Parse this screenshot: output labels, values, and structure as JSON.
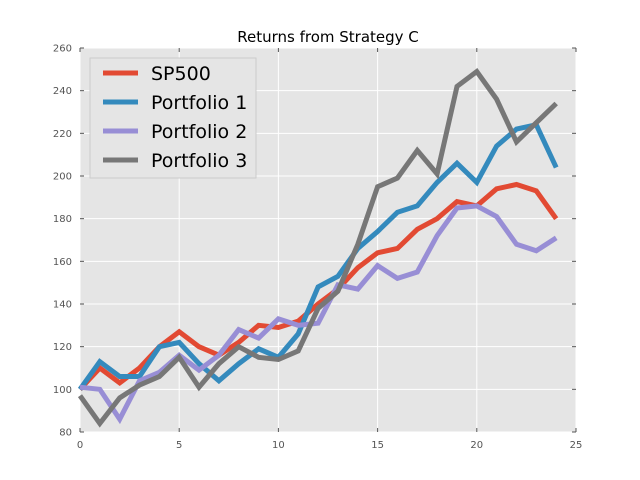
{
  "chart_data": {
    "type": "line",
    "title": "Returns from Strategy C",
    "xlabel": "",
    "ylabel": "",
    "xlim": [
      0,
      25
    ],
    "ylim": [
      80,
      260
    ],
    "xticks": [
      "0",
      "5",
      "10",
      "15",
      "20",
      "25"
    ],
    "yticks": [
      "80",
      "100",
      "120",
      "140",
      "160",
      "180",
      "200",
      "220",
      "240",
      "260"
    ],
    "grid": true,
    "legend_position": "top-left",
    "x": [
      0,
      1,
      2,
      3,
      4,
      5,
      6,
      7,
      8,
      9,
      10,
      11,
      12,
      13,
      14,
      15,
      16,
      17,
      18,
      19,
      20,
      21,
      22,
      23,
      24
    ],
    "series": [
      {
        "name": "SP500",
        "color": "#E24A33",
        "values": [
          100,
          110,
          103,
          110,
          120,
          127,
          120,
          116,
          122,
          130,
          129,
          132,
          140,
          147,
          157,
          164,
          166,
          175,
          180,
          188,
          186,
          194,
          196,
          193,
          180
        ]
      },
      {
        "name": "Portfolio 1",
        "color": "#348ABD",
        "values": [
          100,
          113,
          106,
          106,
          120,
          122,
          112,
          104,
          112,
          119,
          115,
          126,
          148,
          153,
          166,
          174,
          183,
          186,
          197,
          206,
          197,
          214,
          222,
          224,
          204
        ]
      },
      {
        "name": "Portfolio 2",
        "color": "#988ED5",
        "values": [
          101,
          100,
          86,
          104,
          108,
          116,
          109,
          116,
          128,
          124,
          133,
          130,
          131,
          149,
          147,
          158,
          152,
          155,
          172,
          185,
          186,
          181,
          168,
          165,
          171
        ]
      },
      {
        "name": "Portfolio 3",
        "color": "#777777",
        "values": [
          97,
          84,
          96,
          102,
          106,
          115,
          101,
          112,
          120,
          115,
          114,
          118,
          138,
          146,
          168,
          195,
          199,
          212,
          201,
          242,
          249,
          236,
          216,
          225,
          234
        ]
      }
    ]
  }
}
